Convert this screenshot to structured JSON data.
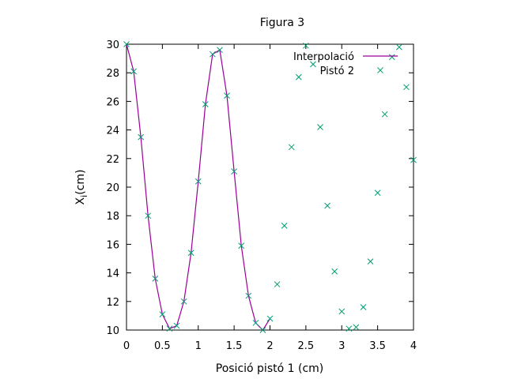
{
  "chart_data": {
    "type": "line+scatter",
    "title": "Figura 3",
    "xlabel": "Posició pistó 1 (cm)",
    "ylabel_main": "X",
    "ylabel_sub": "i",
    "ylabel_unit": "(cm)",
    "xlim": [
      0,
      4
    ],
    "ylim": [
      10,
      30
    ],
    "xticks": [
      "0",
      "0.5",
      "1",
      "1.5",
      "2",
      "2.5",
      "3",
      "3.5",
      "4"
    ],
    "yticks": [
      "10",
      "12",
      "14",
      "16",
      "18",
      "20",
      "22",
      "24",
      "26",
      "28",
      "30"
    ],
    "grid": false,
    "legend_position": "top-right",
    "series": [
      {
        "name": "Interpolació",
        "kind": "line",
        "color": "#990099",
        "x": [
          0,
          0.1,
          0.2,
          0.3,
          0.4,
          0.5,
          0.6,
          0.7,
          0.8,
          0.9,
          1.0,
          1.1,
          1.2,
          1.3,
          1.4,
          1.5,
          1.6,
          1.7,
          1.8,
          1.9,
          2.0
        ],
        "y": [
          30,
          28.1,
          23.5,
          18.0,
          13.6,
          11.1,
          10.1,
          10.3,
          12.0,
          15.4,
          20.4,
          25.8,
          29.3,
          29.6,
          26.4,
          21.1,
          15.9,
          12.4,
          10.5,
          10.0,
          10.8
        ]
      },
      {
        "name": "Pistó 2",
        "kind": "scatter",
        "color": "#009e73",
        "x": [
          0,
          0.1,
          0.2,
          0.3,
          0.4,
          0.5,
          0.6,
          0.7,
          0.8,
          0.9,
          1.0,
          1.1,
          1.2,
          1.3,
          1.4,
          1.5,
          1.6,
          1.7,
          1.8,
          1.9,
          2.0,
          2.1,
          2.2,
          2.3,
          2.4,
          2.5,
          2.6,
          2.7,
          2.8,
          2.9,
          3.0,
          3.1,
          3.2,
          3.3,
          3.4,
          3.5,
          3.6,
          3.7,
          3.8,
          3.9,
          4.0
        ],
        "y": [
          30,
          28.1,
          23.5,
          18.0,
          13.6,
          11.1,
          10.1,
          10.3,
          12.0,
          15.4,
          20.4,
          25.8,
          29.3,
          29.6,
          26.4,
          21.1,
          15.9,
          12.4,
          10.5,
          10.0,
          10.8,
          13.2,
          17.3,
          22.8,
          27.7,
          29.9,
          28.6,
          24.2,
          18.7,
          14.1,
          11.3,
          10.1,
          10.2,
          11.6,
          14.8,
          19.6,
          25.1,
          29.1,
          29.8,
          27.0,
          21.9
        ]
      }
    ]
  }
}
